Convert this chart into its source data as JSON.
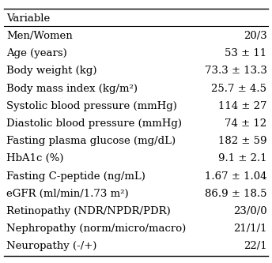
{
  "header": "Variable",
  "rows": [
    [
      "Men/Women",
      "20/3"
    ],
    [
      "Age (years)",
      "53 ± 11"
    ],
    [
      "Body weight (kg)",
      "73.3 ± 13.3"
    ],
    [
      "Body mass index (kg/m²)",
      "25.7 ± 4.5"
    ],
    [
      "Systolic blood pressure (mmHg)",
      "114 ± 27"
    ],
    [
      "Diastolic blood pressure (mmHg)",
      "74 ± 12"
    ],
    [
      "Fasting plasma glucose (mg/dL)",
      "182 ± 59"
    ],
    [
      "HbA1c (%)",
      "9.1 ± 2.1"
    ],
    [
      "Fasting C-peptide (ng/mL)",
      "1.67 ± 1.04"
    ],
    [
      "eGFR (ml/min/1.73 m²)",
      "86.9 ± 18.5"
    ],
    [
      "Retinopathy (NDR/NPDR/PDR)",
      "23/0/0"
    ],
    [
      "Nephropathy (norm/micro/macro)",
      "21/1/1"
    ],
    [
      "Neuropathy (-/+)",
      "22/1"
    ]
  ],
  "background_color": "#ffffff",
  "text_color": "#000000",
  "header_fontsize": 9.5,
  "row_fontsize": 9.5,
  "figsize": [
    3.44,
    3.33
  ],
  "dpi": 100
}
